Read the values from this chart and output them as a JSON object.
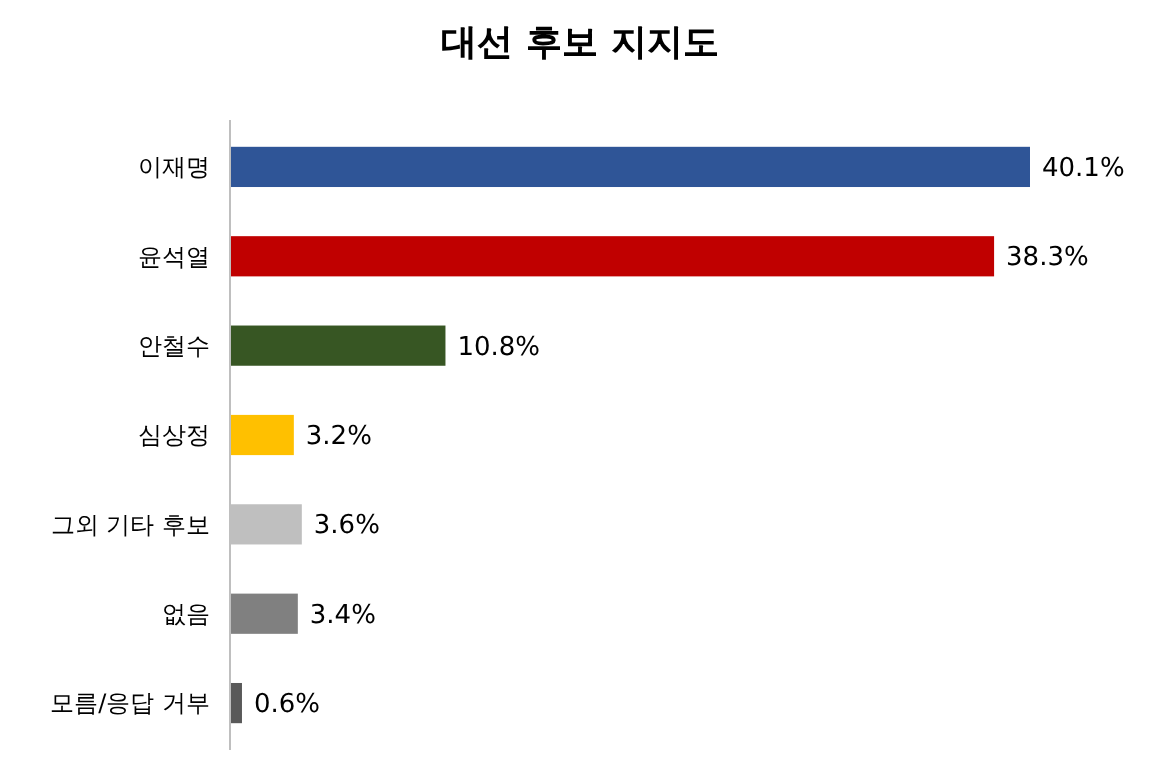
{
  "chart_data": {
    "type": "bar",
    "orientation": "horizontal",
    "title": "대선 후보 지지도",
    "categories": [
      "이재명",
      "윤석열",
      "안철수",
      "심상정",
      "그외 기타 후보",
      "없음",
      "모름/응답 거부"
    ],
    "values": [
      40.1,
      38.3,
      10.8,
      3.2,
      3.6,
      3.4,
      0.6
    ],
    "value_labels": [
      "40.1%",
      "38.3%",
      "10.8%",
      "3.2%",
      "3.6%",
      "3.4%",
      "0.6%"
    ],
    "colors": [
      "#2f5597",
      "#c00000",
      "#375623",
      "#ffc000",
      "#bfbfbf",
      "#808080",
      "#595959"
    ]
  }
}
